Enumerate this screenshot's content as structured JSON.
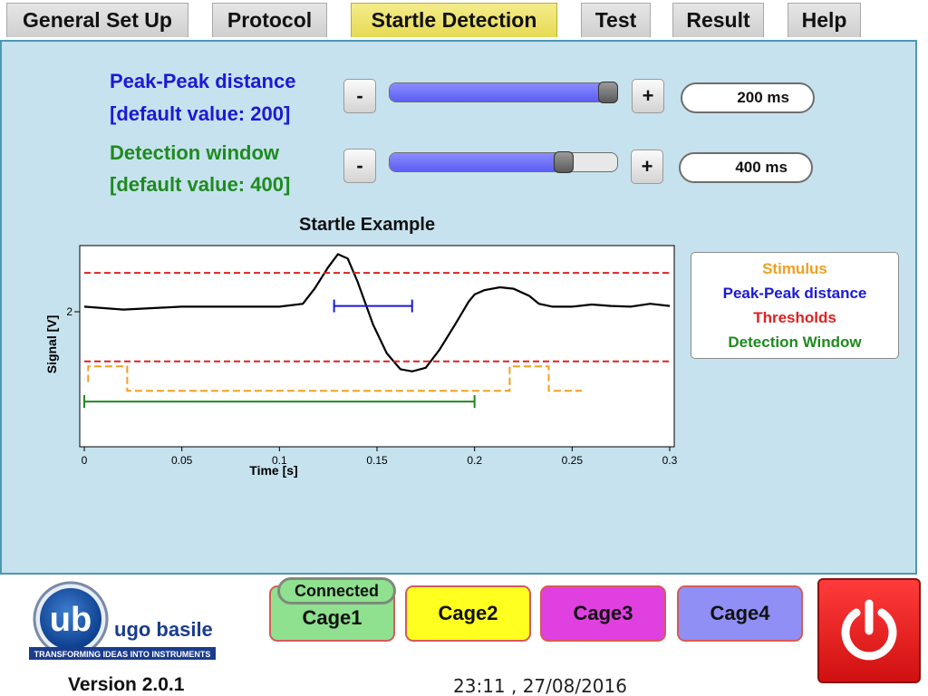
{
  "tabs": [
    {
      "label": "General Set Up",
      "active": false
    },
    {
      "label": "Protocol",
      "active": false
    },
    {
      "label": "Startle Detection",
      "active": true
    },
    {
      "label": "Test",
      "active": false
    },
    {
      "label": "Result",
      "active": false
    },
    {
      "label": "Help",
      "active": false
    }
  ],
  "peak_distance": {
    "title": "Peak-Peak distance",
    "default": "[default value: 200]",
    "minus": "-",
    "plus": "+",
    "value": "200 ms",
    "slider_fraction": 1.0,
    "color": "#1a1ad6"
  },
  "detection_window": {
    "title": "Detection window",
    "default": "[default value: 400]",
    "minus": "-",
    "plus": "+",
    "value": "400 ms",
    "slider_fraction": 0.79,
    "color": "#1f8a1f"
  },
  "chart": {
    "title": "Startle Example",
    "xlabel": "Time [s]",
    "ylabel": "Signal [V]",
    "xticks": [
      "0",
      "0.05",
      "0.1",
      "0.15",
      "0.2",
      "0.25",
      "0.3"
    ],
    "ytick": "2"
  },
  "chart_data": {
    "type": "line",
    "title": "Startle Example",
    "xlabel": "Time [s]",
    "ylabel": "Signal [V]",
    "xlim": [
      0,
      0.3
    ],
    "ylim": [
      0,
      2.8
    ],
    "grid": false,
    "legend_position": "right",
    "series": [
      {
        "name": "Signal",
        "color": "#000000",
        "x": [
          0,
          0.02,
          0.05,
          0.08,
          0.1,
          0.112,
          0.118,
          0.125,
          0.13,
          0.135,
          0.14,
          0.148,
          0.155,
          0.162,
          0.168,
          0.175,
          0.182,
          0.19,
          0.197,
          0.2,
          0.205,
          0.213,
          0.22,
          0.228,
          0.233,
          0.24,
          0.25,
          0.26,
          0.27,
          0.28,
          0.29,
          0.3
        ],
        "y": [
          1.95,
          1.91,
          1.95,
          1.95,
          1.95,
          1.99,
          2.2,
          2.5,
          2.68,
          2.62,
          2.3,
          1.7,
          1.3,
          1.08,
          1.05,
          1.1,
          1.35,
          1.7,
          2.02,
          2.12,
          2.18,
          2.22,
          2.2,
          2.1,
          1.99,
          1.95,
          1.95,
          1.98,
          1.96,
          1.95,
          1.99,
          1.96
        ]
      },
      {
        "name": "Peak-Peak distance",
        "color": "#1a1ad6",
        "x": [
          0.128,
          0.168
        ],
        "y": [
          1.96,
          1.96
        ]
      },
      {
        "name": "Thresholds",
        "color": "#e02020",
        "x": [
          0,
          0.3
        ],
        "y": [
          2.42,
          2.42
        ]
      },
      {
        "name": "Thresholds",
        "color": "#e02020",
        "x": [
          0,
          0.3
        ],
        "y": [
          1.19,
          1.19
        ]
      },
      {
        "name": "Stimulus",
        "color": "#f0a020",
        "x": [
          0.002,
          0.002,
          0.022,
          0.022,
          0.218,
          0.218,
          0.238,
          0.238,
          0.255
        ],
        "y": [
          0.9,
          1.12,
          1.12,
          0.78,
          0.78,
          1.12,
          1.12,
          0.78,
          0.78
        ]
      },
      {
        "name": "Detection Window",
        "color": "#1f8a1f",
        "x": [
          0,
          0.2
        ],
        "y": [
          0.63,
          0.63
        ]
      }
    ]
  },
  "legend": [
    {
      "label": "Stimulus",
      "color": "#f0a020"
    },
    {
      "label": "Peak-Peak distance",
      "color": "#1a1ad6"
    },
    {
      "label": "Thresholds",
      "color": "#e02020"
    },
    {
      "label": "Detection Window",
      "color": "#1f8a1f"
    }
  ],
  "logo": {
    "brand": "ugo basile",
    "tagline": "TRANSFORMING IDEAS INTO INSTRUMENTS"
  },
  "version": "Version 2.0.1",
  "cages": [
    {
      "label": "Cage1",
      "color": "#8fe08f"
    },
    {
      "label": "Cage2",
      "color": "#ffff20"
    },
    {
      "label": "Cage3",
      "color": "#e040e0"
    },
    {
      "label": "Cage4",
      "color": "#8f8ff6"
    }
  ],
  "connection_status": "Connected",
  "datetime": "23:11 , 27/08/2016"
}
